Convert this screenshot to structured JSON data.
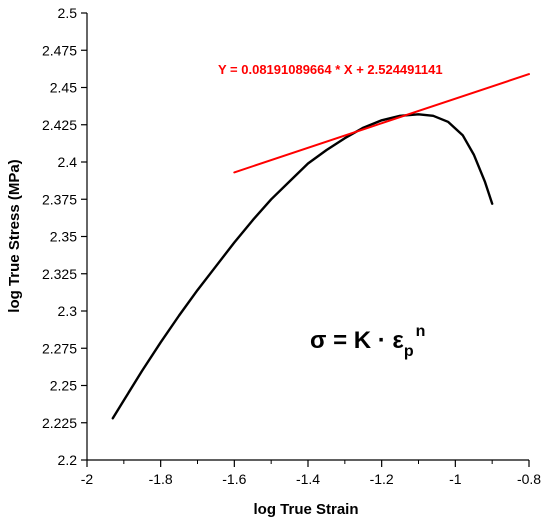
{
  "chart_data": {
    "type": "line",
    "title": "",
    "xlabel": "log True Strain",
    "ylabel": "log True Stress (MPa)",
    "xlim": [
      -2,
      -0.8
    ],
    "ylim": [
      2.2,
      2.5
    ],
    "x_ticks": [
      -2,
      -1.8,
      -1.6,
      -1.4,
      -1.2,
      -1,
      -0.8
    ],
    "x_tick_labels": [
      "-2",
      "-1.8",
      "-1.6",
      "-1.4",
      "-1.2",
      "-1",
      "-0.8"
    ],
    "y_ticks": [
      2.2,
      2.225,
      2.25,
      2.275,
      2.3,
      2.325,
      2.35,
      2.375,
      2.4,
      2.425,
      2.45,
      2.475,
      2.5
    ],
    "y_tick_labels": [
      "2.2",
      "2.225",
      "2.25",
      "2.275",
      "2.3",
      "2.325",
      "2.35",
      "2.375",
      "2.4",
      "2.425",
      "2.45",
      "2.475",
      "2.5"
    ],
    "grid": false,
    "legend": "none",
    "series": [
      {
        "color": "#000000",
        "x": [
          -1.93,
          -1.9,
          -1.85,
          -1.8,
          -1.75,
          -1.7,
          -1.65,
          -1.6,
          -1.55,
          -1.5,
          -1.45,
          -1.4,
          -1.35,
          -1.3,
          -1.25,
          -1.2,
          -1.15,
          -1.1,
          -1.06,
          -1.02,
          -0.98,
          -0.95,
          -0.92,
          -0.9
        ],
        "y": [
          2.228,
          2.24,
          2.26,
          2.279,
          2.297,
          2.314,
          2.33,
          2.346,
          2.361,
          2.375,
          2.387,
          2.399,
          2.408,
          2.416,
          2.423,
          2.428,
          2.431,
          2.432,
          2.431,
          2.427,
          2.418,
          2.405,
          2.387,
          2.372
        ]
      },
      {
        "color": "#ff0000",
        "x": [
          -1.6,
          -0.8
        ],
        "y": [
          2.393,
          2.459
        ]
      }
    ],
    "annotations": {
      "fit_equation": "Y = 0.08191089664 * X + 2.524491141",
      "fit_color": "#ff0000",
      "formula_main": "σ = K · ε",
      "formula_subscript": "p",
      "formula_superscript": "n"
    }
  }
}
